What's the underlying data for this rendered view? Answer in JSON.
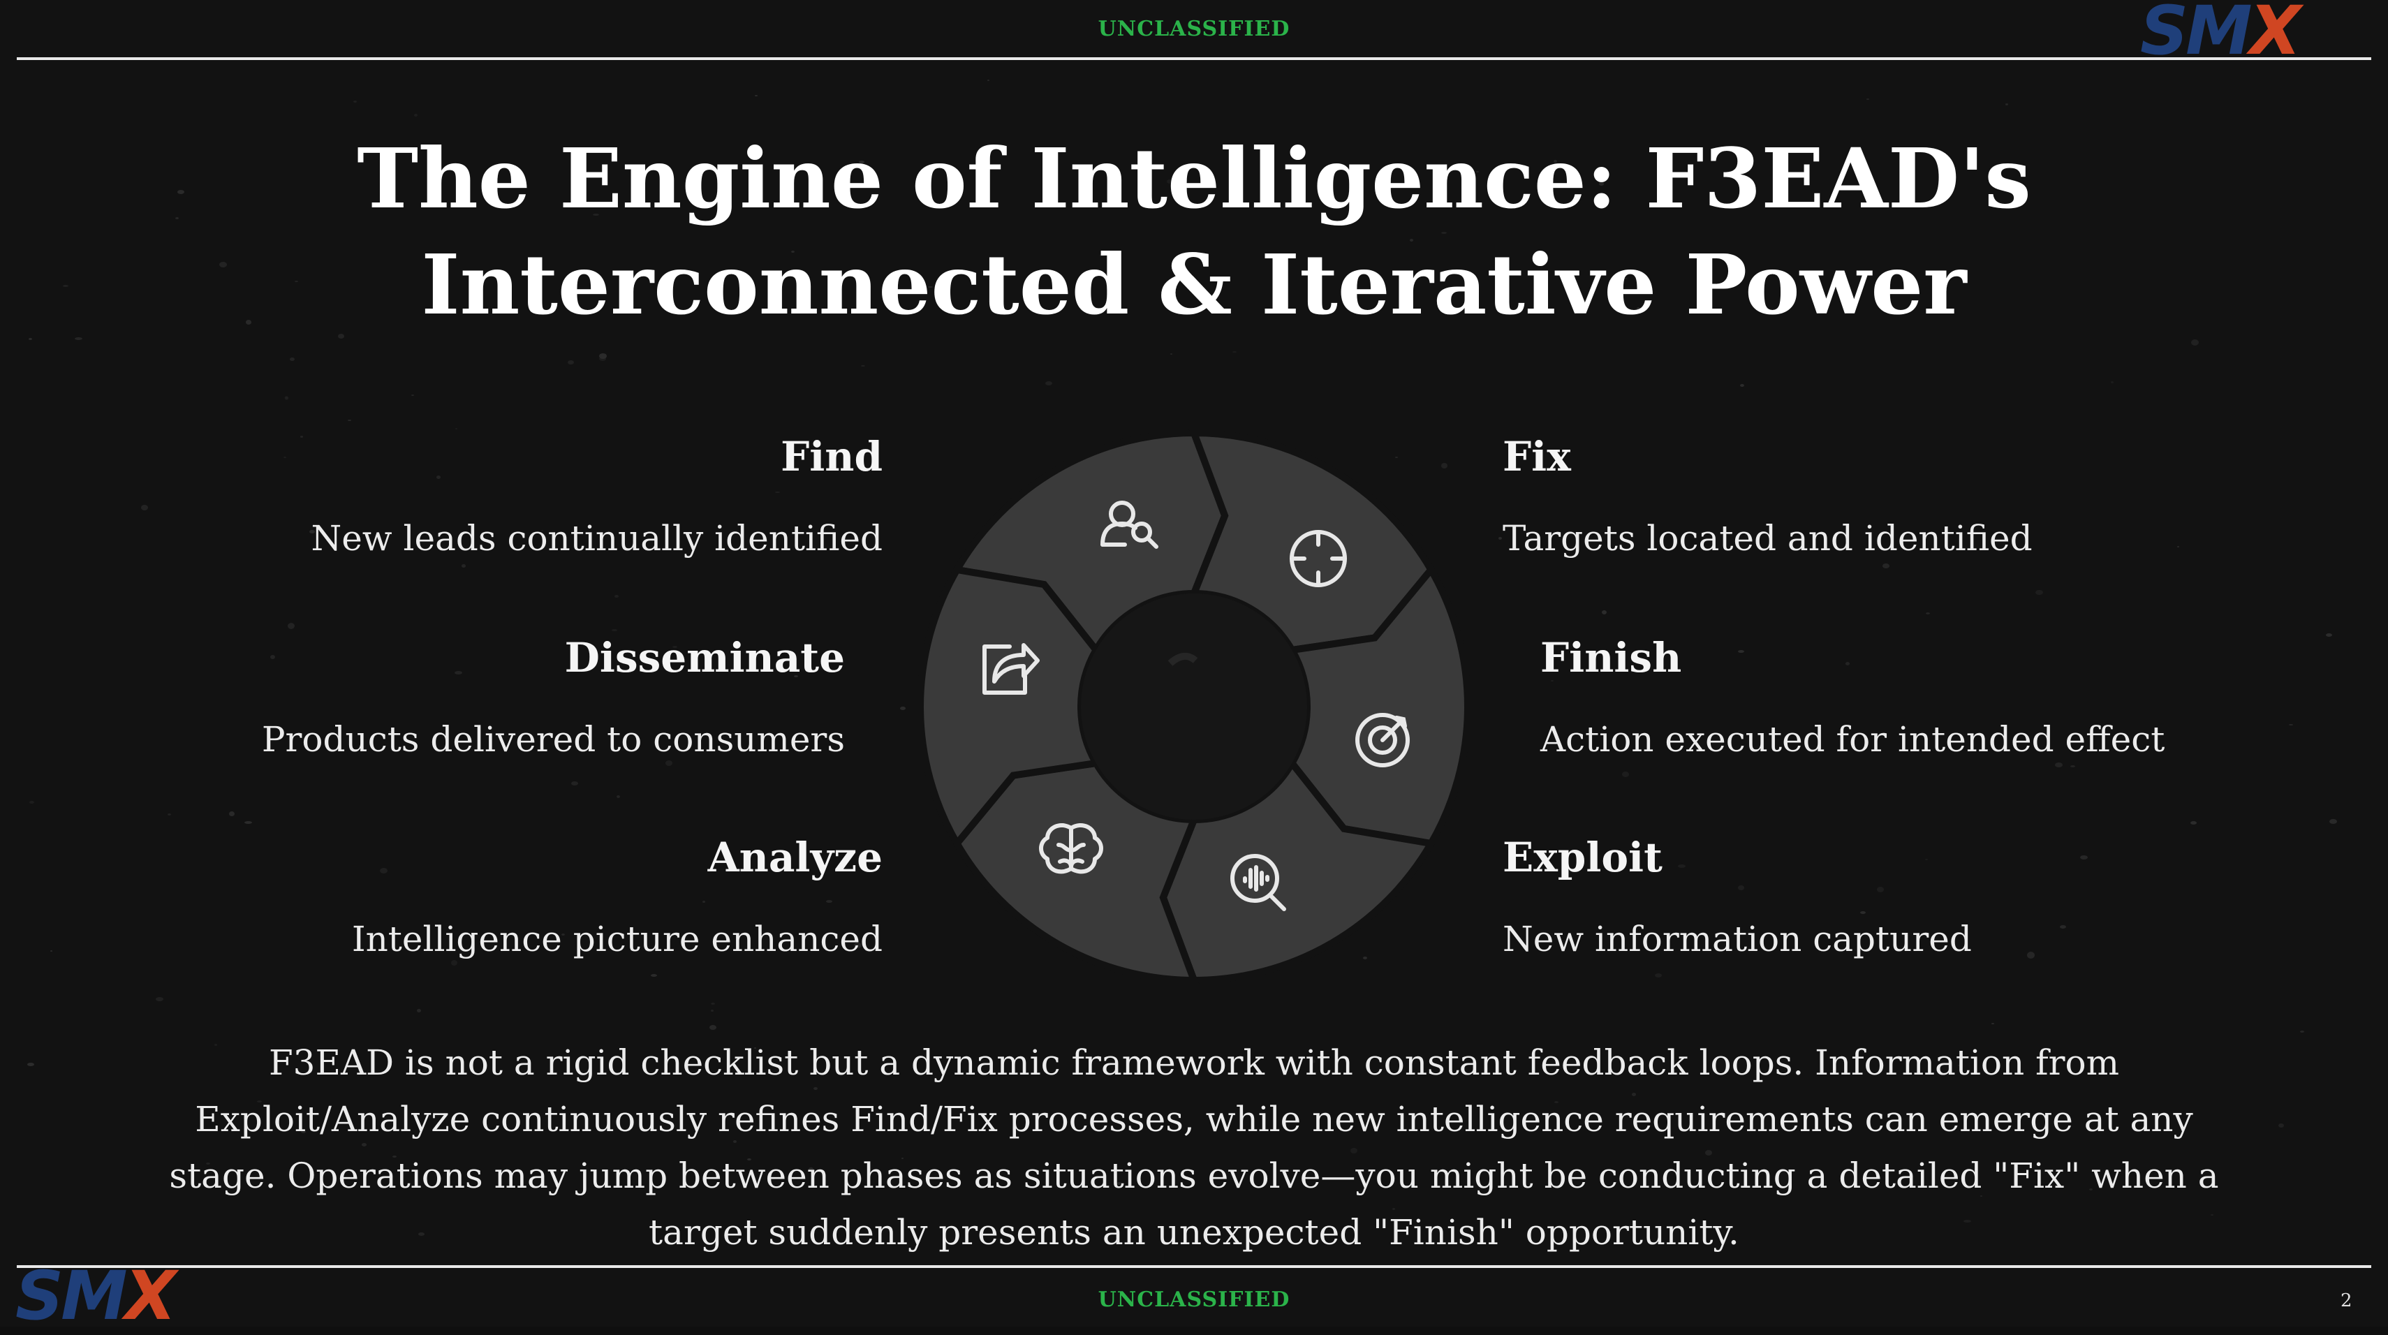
{
  "banner": {
    "top": "UNCLASSIFIED",
    "bottom": "UNCLASSIFIED"
  },
  "logo": {
    "top": {
      "letters": "SM",
      "accent": "X"
    },
    "bottom": {
      "letters": "SM",
      "accent": "X"
    }
  },
  "title": "The Engine of Intelligence: F3EAD's Interconnected & Iterative Power",
  "phases": {
    "find": {
      "title": "Find",
      "description": "New leads continually identified",
      "icon": "user-search-icon"
    },
    "fix": {
      "title": "Fix",
      "description": "Targets located and identified",
      "icon": "crosshair-icon"
    },
    "finish": {
      "title": "Finish",
      "description": "Action executed for intended effect",
      "icon": "target-icon"
    },
    "exploit": {
      "title": "Exploit",
      "description": "New information captured",
      "icon": "search-audio-icon"
    },
    "analyze": {
      "title": "Analyze",
      "description": "Intelligence picture enhanced",
      "icon": "brain-icon"
    },
    "disseminate": {
      "title": "Disseminate",
      "description": "Products delivered to consumers",
      "icon": "share-icon"
    }
  },
  "summary": "F3EAD is not a rigid checklist but a dynamic framework with constant feedback loops. Information from Exploit/Analyze continuously refines Find/Fix processes, while new intelligence requirements can emerge at any stage. Operations may jump between phases as situations evolve—you might be conducting a detailed \"Fix\" when a target suddenly presents an unexpected \"Finish\" opportunity.",
  "page_number": "2",
  "colors": {
    "banner": "#2bb34a",
    "logo_primary": "#1f3f7a",
    "logo_accent": "#d04622",
    "segment_fill": "#3a3a3a",
    "center_fill": "#161616"
  }
}
